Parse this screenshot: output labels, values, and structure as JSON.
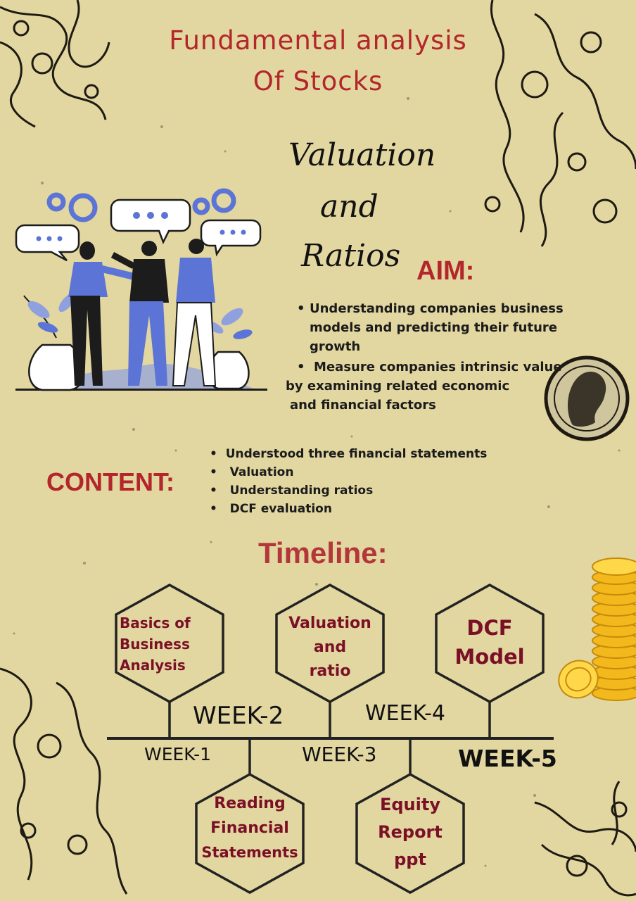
{
  "title_line1": "Fundamental analysis",
  "title_line2": "Of Stocks",
  "subtitle": [
    "Valuation",
    "and",
    "Ratios"
  ],
  "aim": {
    "heading": "AIM:",
    "bullet1_lines": [
      "Understanding companies business",
      "models and predicting their future",
      "growth"
    ],
    "bullet2_lines": [
      "Measure companies intrinsic value",
      "by examining related economic",
      "and financial factors"
    ]
  },
  "content": {
    "heading": "CONTENT:",
    "items": [
      "Understood three financial statements",
      "Valuation",
      "Understanding ratios",
      "DCF evaluation"
    ]
  },
  "timeline": {
    "heading": "Timeline:",
    "top_hexagons": [
      {
        "lines": [
          "Basics of",
          "Business",
          "Analysis"
        ]
      },
      {
        "lines": [
          "Valuation",
          "and",
          "ratio"
        ]
      },
      {
        "lines": [
          "DCF",
          "Model"
        ]
      }
    ],
    "bottom_hexagons": [
      {
        "lines": [
          "Reading",
          "Financial",
          "Statements"
        ]
      },
      {
        "lines": [
          "Equity",
          "Report",
          "ppt"
        ]
      }
    ],
    "weeks": [
      "WEEK-1",
      "WEEK-2",
      "WEEK-3",
      "WEEK-4",
      "WEEK-5"
    ]
  },
  "colors": {
    "background": "#e2d6a1",
    "title_red": "#b3262b",
    "hex_text": "#7a1026",
    "figure_blue": "#5b74d6",
    "gold": "#f2b81c"
  }
}
